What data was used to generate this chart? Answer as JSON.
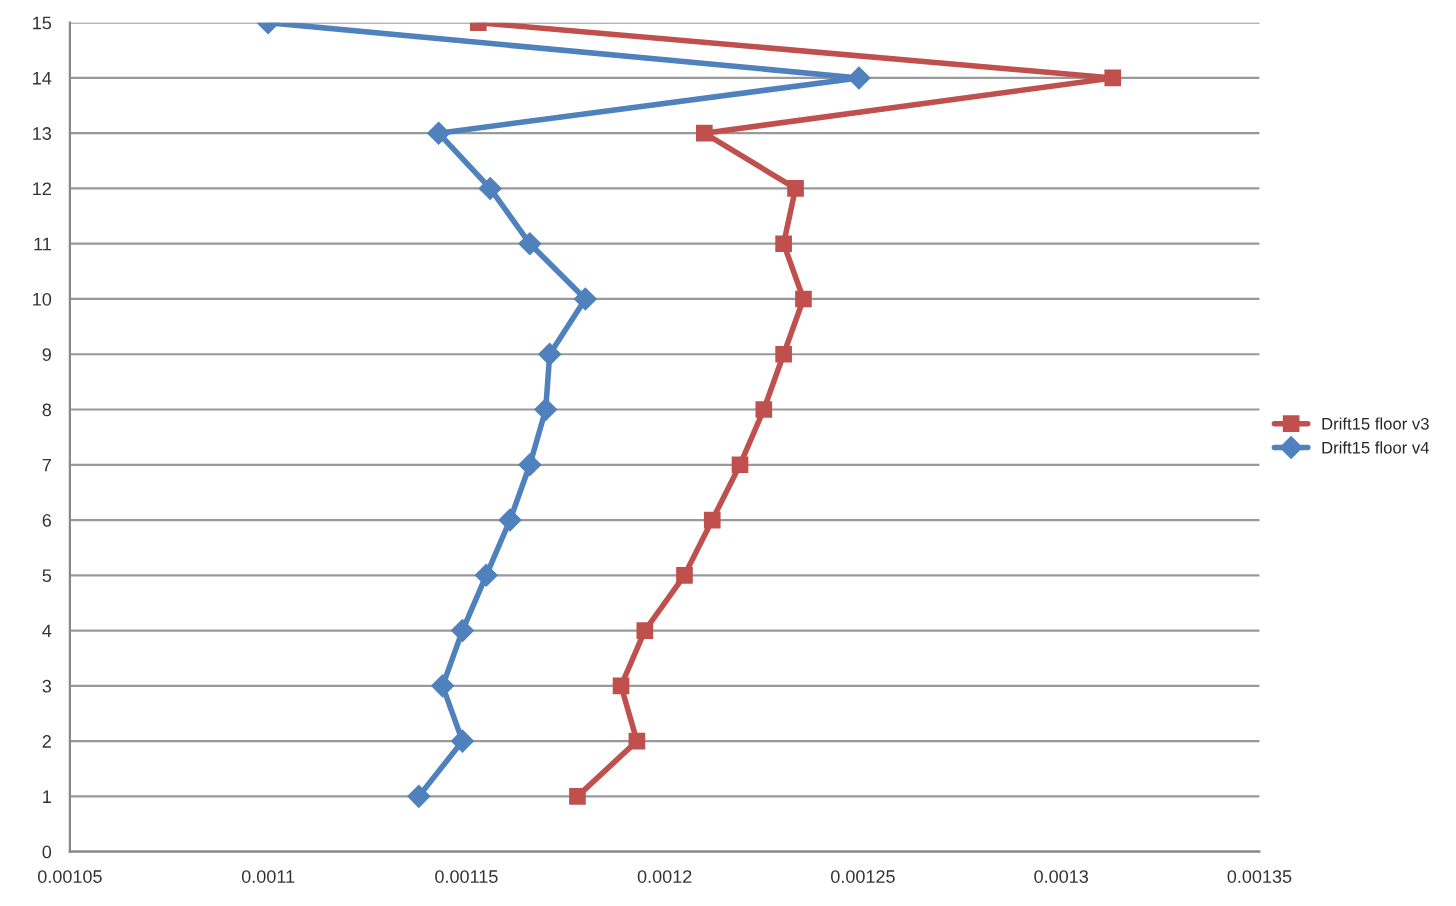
{
  "chart_data": {
    "type": "line",
    "xlim": [
      0.00105,
      0.00135
    ],
    "xticks": [
      0.00105,
      0.0011,
      0.00115,
      0.0012,
      0.00125,
      0.0013,
      0.00135
    ],
    "ylim": [
      0,
      15
    ],
    "yticks": [
      0,
      1,
      2,
      3,
      4,
      5,
      6,
      7,
      8,
      9,
      10,
      11,
      12,
      13,
      14,
      15
    ],
    "grid": "y",
    "legend": "right",
    "series": [
      {
        "name": "Drift15 floor v3",
        "color": "#c0504d",
        "marker": "square",
        "x": [
          0.001178,
          0.001193,
          0.001189,
          0.001195,
          0.001205,
          0.001212,
          0.001219,
          0.001225,
          0.00123,
          0.001235,
          0.00123,
          0.001233,
          0.00121,
          0.001313,
          0.001153
        ],
        "values": [
          1,
          2,
          3,
          4,
          5,
          6,
          7,
          8,
          9,
          10,
          11,
          12,
          13,
          14,
          15
        ]
      },
      {
        "name": "Drift15 floor v4",
        "color": "#4f81bd",
        "marker": "diamond",
        "x": [
          0.001138,
          0.001149,
          0.001144,
          0.001149,
          0.001155,
          0.001161,
          0.001166,
          0.00117,
          0.001171,
          0.00118,
          0.001166,
          0.001156,
          0.001143,
          0.001249,
          0.0011
        ],
        "values": [
          1,
          2,
          3,
          4,
          5,
          6,
          7,
          8,
          9,
          10,
          11,
          12,
          13,
          14,
          15
        ]
      }
    ]
  }
}
